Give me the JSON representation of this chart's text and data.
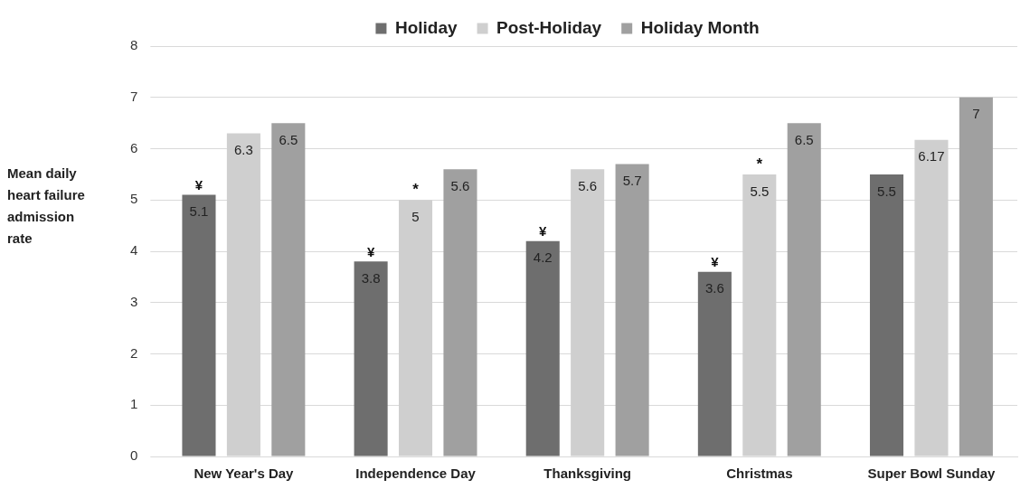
{
  "chart_data": {
    "type": "bar",
    "ylabel": "Mean daily heart failure admission rate",
    "categories": [
      "New Year's Day",
      "Independence Day",
      "Thanksgiving",
      "Christmas",
      "Super Bowl Sunday"
    ],
    "series": [
      {
        "name": "Holiday",
        "color": "#6e6e6e",
        "values": [
          5.1,
          3.8,
          4.2,
          3.6,
          5.5
        ]
      },
      {
        "name": "Post-Holiday",
        "color": "#cfcfcf",
        "values": [
          6.3,
          5,
          5.6,
          5.5,
          6.17
        ]
      },
      {
        "name": "Holiday Month",
        "color": "#a0a0a0",
        "values": [
          6.5,
          5.6,
          5.7,
          6.5,
          7
        ]
      }
    ],
    "ylim": [
      0,
      8
    ],
    "yticks": [
      0,
      1,
      2,
      3,
      4,
      5,
      6,
      7,
      8
    ],
    "grid": "y",
    "legend": "top",
    "data_labels": true,
    "annotations": [
      "¥",
      "¥",
      "¥",
      "¥",
      {
        "text": "*",
        "x": "Independence Day",
        "y": 5
      },
      {
        "text": "*",
        "x": "Christmas",
        "y": 5.5
      }
    ]
  }
}
